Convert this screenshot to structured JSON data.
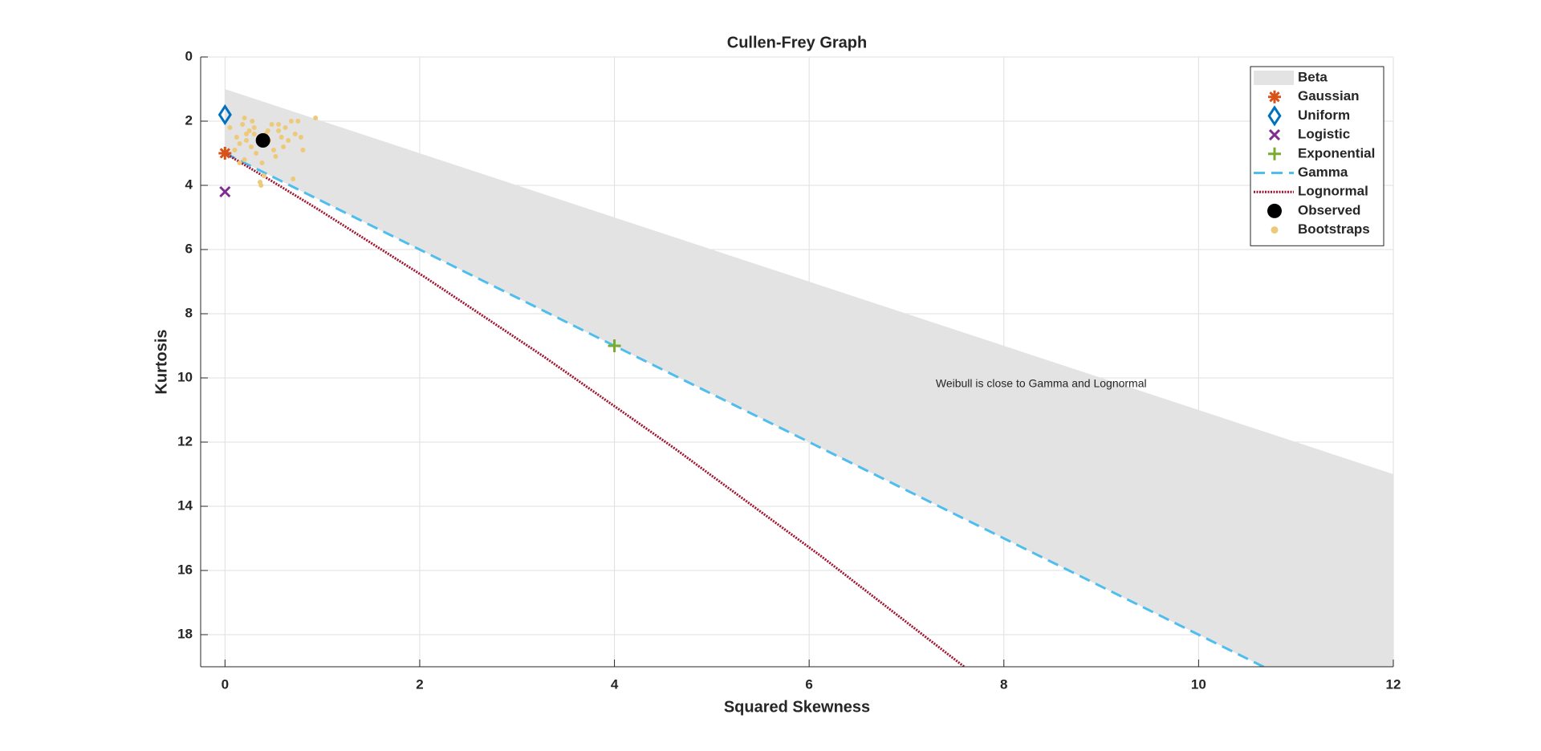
{
  "chart_data": {
    "type": "scatter",
    "title": "Cullen-Frey Graph",
    "x_label": "Squared Skewness",
    "y_label": "Kurtosis",
    "xlim": [
      -0.25,
      12
    ],
    "ylim": [
      0,
      19
    ],
    "y_reversed": true,
    "xticks": [
      0,
      2,
      4,
      6,
      8,
      10,
      12
    ],
    "yticks": [
      0,
      2,
      4,
      6,
      8,
      10,
      12,
      14,
      16,
      18
    ],
    "grid": true,
    "legend": "upper-right",
    "series": [
      {
        "name": "Beta",
        "type": "area",
        "color": "#e3e3e3",
        "x": [
          0,
          12,
          12,
          0
        ],
        "y": [
          1,
          13,
          21,
          3
        ]
      },
      {
        "name": "Gaussian",
        "type": "marker",
        "marker": "asterisk",
        "color": "#D95319",
        "x": [
          0
        ],
        "y": [
          3
        ]
      },
      {
        "name": "Uniform",
        "type": "marker",
        "marker": "diamond",
        "color": "#0072BD",
        "x": [
          0
        ],
        "y": [
          1.8
        ]
      },
      {
        "name": "Logistic",
        "type": "marker",
        "marker": "cross",
        "color": "#7E2F8E",
        "x": [
          0
        ],
        "y": [
          4.2
        ]
      },
      {
        "name": "Exponential",
        "type": "marker",
        "marker": "plus",
        "color": "#77AC30",
        "x": [
          4
        ],
        "y": [
          9
        ]
      },
      {
        "name": "Gamma",
        "type": "line",
        "dash": "dashed",
        "color": "#4DBEEE",
        "x": [
          0,
          12
        ],
        "y": [
          3,
          21
        ]
      },
      {
        "name": "Lognormal",
        "type": "line",
        "dash": "dotted",
        "color": "#A2142F",
        "x": [
          0,
          0.465,
          0.961,
          2.048,
          3.267,
          4.624,
          6.125,
          7.776
        ],
        "y": [
          3,
          3.838,
          4.756,
          6.85,
          9.32,
          12.21,
          15.56,
          19.43
        ]
      },
      {
        "name": "Observed",
        "type": "marker",
        "marker": "circle",
        "color": "#000000",
        "x": [
          0.39
        ],
        "y": [
          2.6
        ]
      },
      {
        "name": "Bootstraps",
        "type": "marker",
        "marker": "dot",
        "color": "#EDC97A",
        "x": [
          0.05,
          0.12,
          0.15,
          0.18,
          0.2,
          0.22,
          0.25,
          0.27,
          0.3,
          0.32,
          0.35,
          0.38,
          0.4,
          0.42,
          0.45,
          0.48,
          0.5,
          0.52,
          0.55,
          0.58,
          0.6,
          0.62,
          0.65,
          0.68,
          0.7,
          0.72,
          0.75,
          0.78,
          0.8,
          0.93,
          0.1,
          0.2,
          0.28,
          0.36,
          0.37,
          0.44,
          0.55,
          0.22,
          0.3,
          0.15
        ],
        "y": [
          2.2,
          2.5,
          2.7,
          2.1,
          1.9,
          2.4,
          2.3,
          2.8,
          2.2,
          3.0,
          2.5,
          3.3,
          3.7,
          2.4,
          2.6,
          2.1,
          2.9,
          3.1,
          2.3,
          2.5,
          2.8,
          2.2,
          2.6,
          2.0,
          3.8,
          2.4,
          2.0,
          2.5,
          2.9,
          1.9,
          2.9,
          3.2,
          2.0,
          3.9,
          4.0,
          2.3,
          2.1,
          2.6,
          2.4,
          3.3
        ]
      }
    ],
    "annotations": [
      {
        "text": "Weibull is close to Gamma and Lognormal",
        "x": 7.3,
        "y": 10.2
      }
    ]
  }
}
